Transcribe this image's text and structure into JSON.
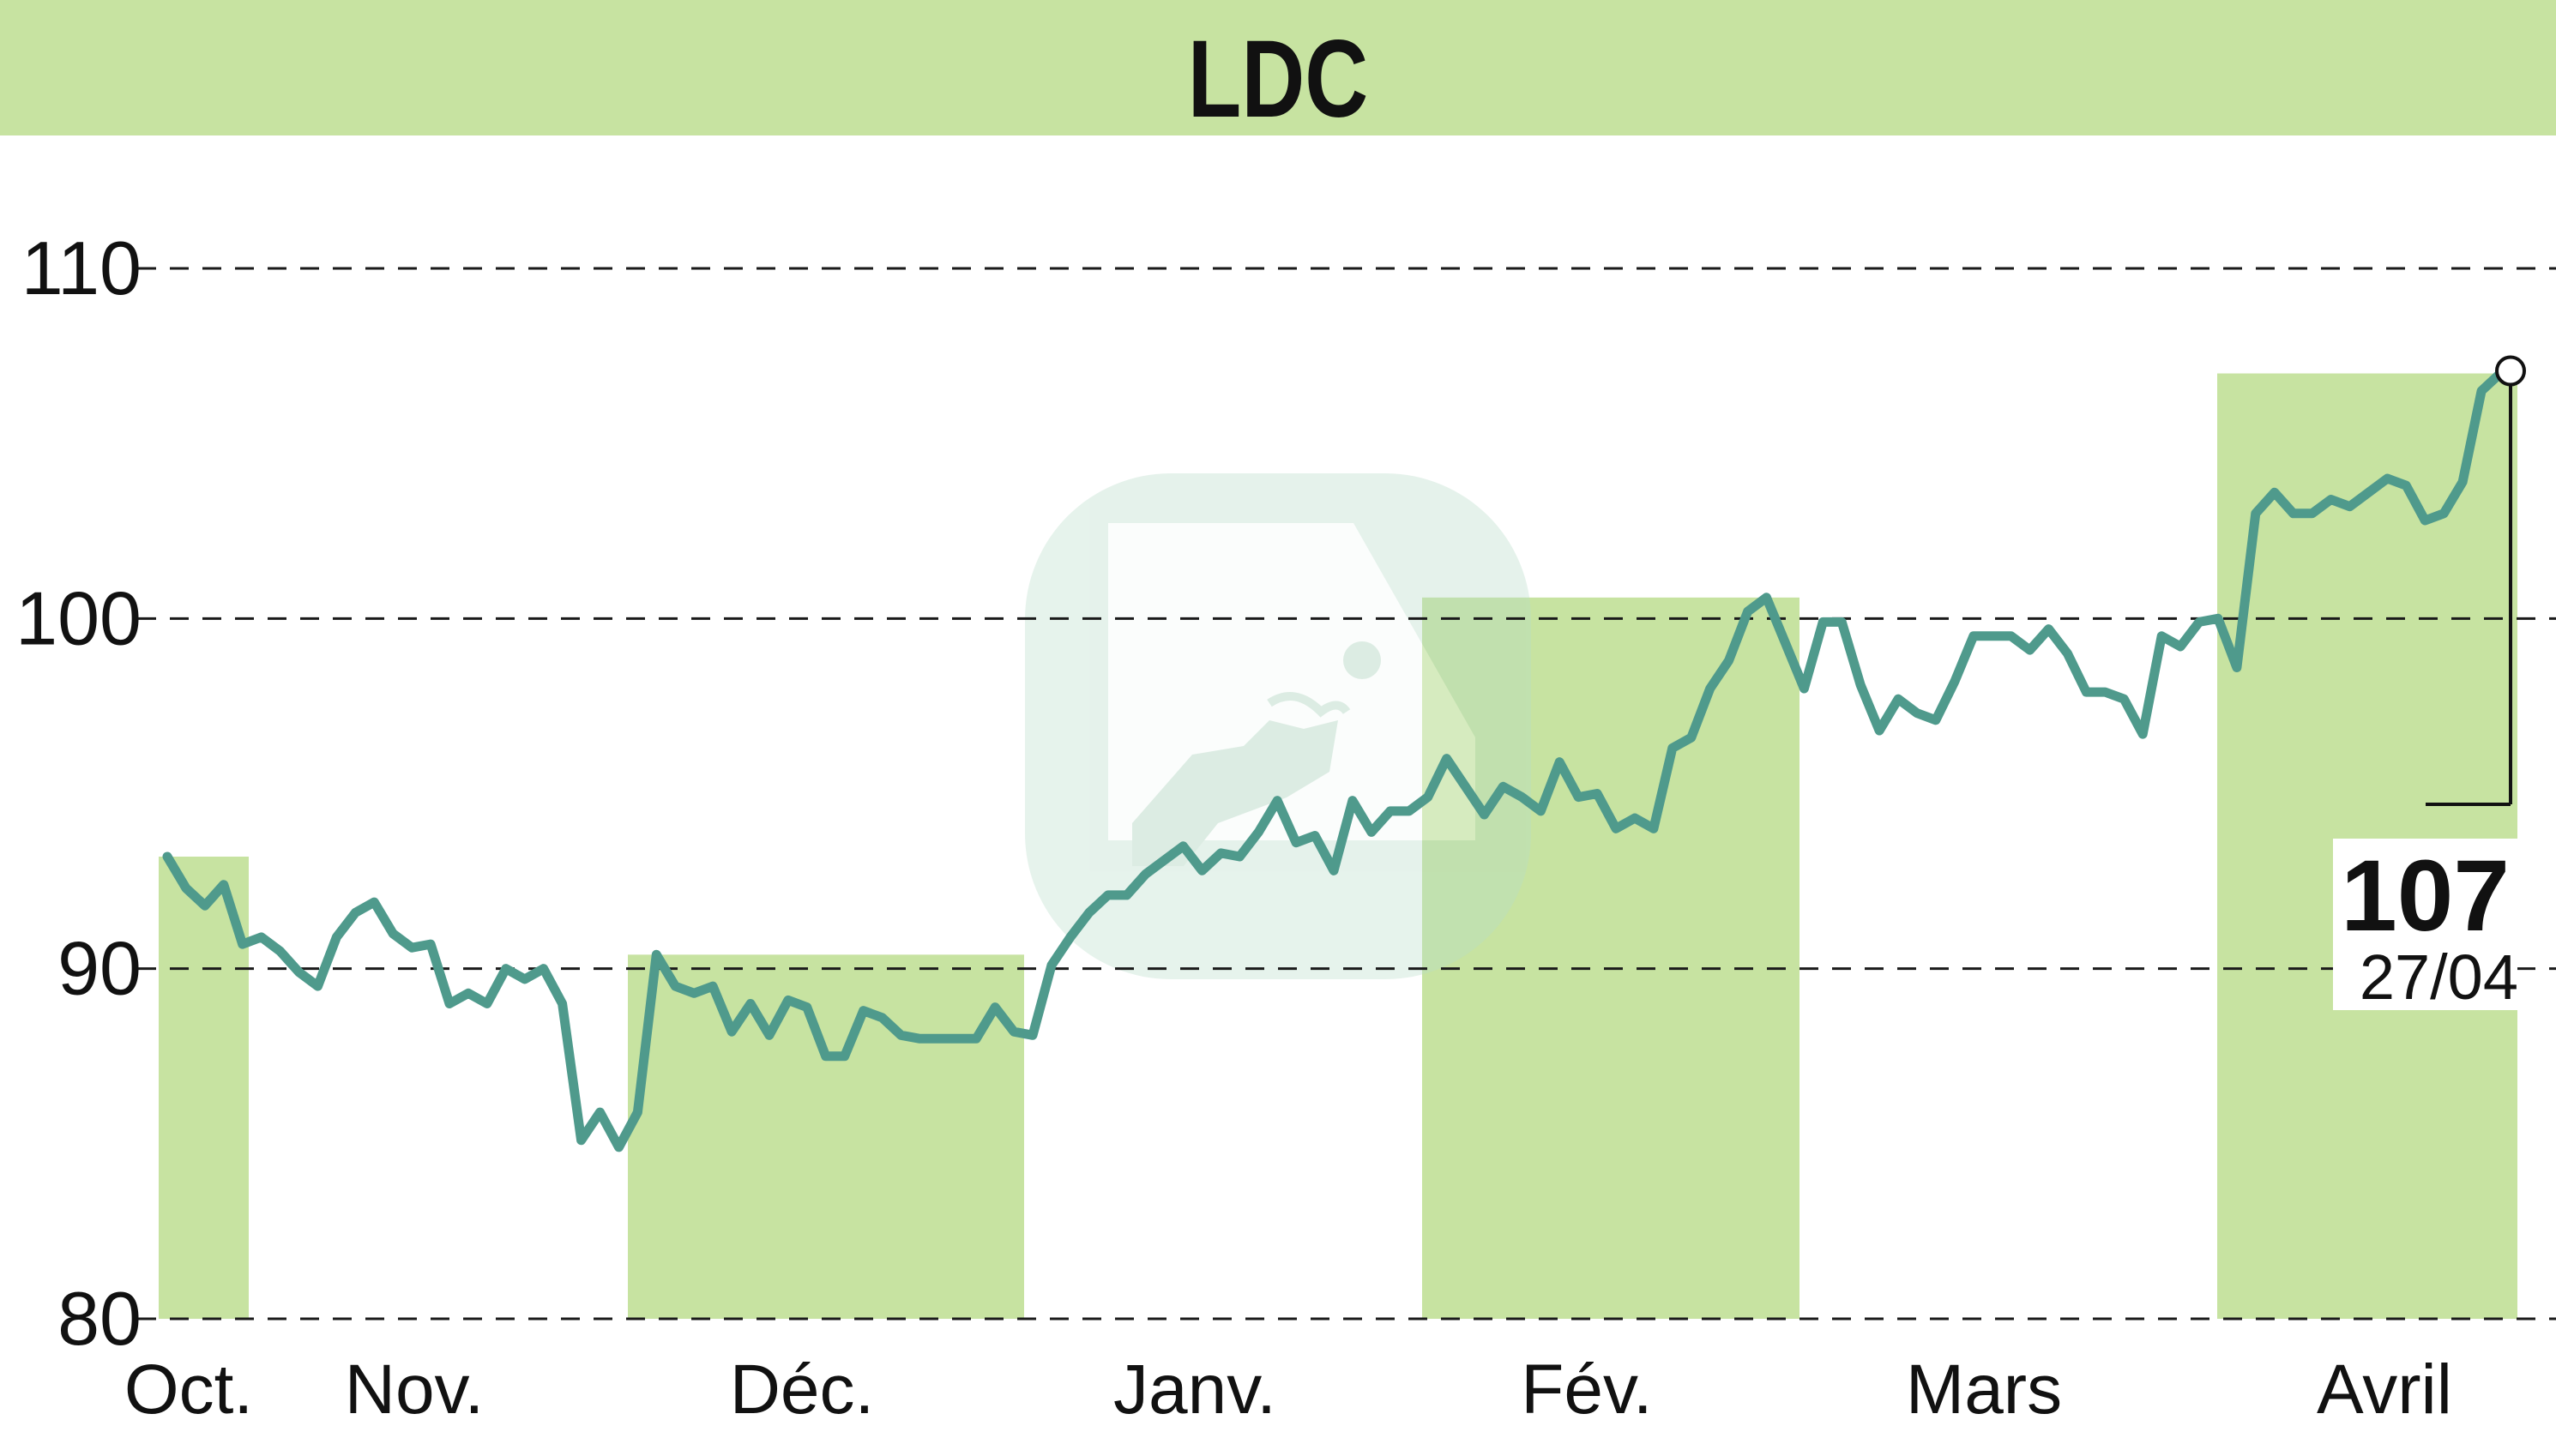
{
  "chart_data": {
    "type": "line",
    "title": "LDC",
    "ylim": [
      80,
      110
    ],
    "yticks": [
      80,
      90,
      100,
      110
    ],
    "months": [
      "Oct.",
      "Nov.",
      "Déc.",
      "Janv.",
      "Fév.",
      "Mars",
      "Avril"
    ],
    "series": [
      {
        "values": [
          93.2,
          92.3,
          91.8,
          92.4,
          90.7,
          90.9,
          90.5,
          89.9,
          89.5,
          90.9,
          91.6,
          91.9,
          91.0,
          90.6,
          90.7,
          89.0,
          89.3,
          89.0,
          90.0,
          89.7,
          90.0,
          89.0,
          85.1,
          85.9,
          84.9,
          85.9,
          90.4,
          89.5,
          89.3,
          89.5,
          88.2,
          89.0,
          88.1,
          89.1,
          88.9,
          87.5,
          87.5,
          88.8,
          88.6,
          88.1,
          88.0,
          88.0,
          88.0,
          88.0,
          88.9,
          88.2,
          88.1,
          90.1,
          90.9,
          91.6,
          92.1,
          92.1,
          92.7,
          93.1,
          93.5,
          92.8,
          93.3,
          93.2,
          93.9,
          94.8,
          93.6,
          93.8,
          92.8,
          94.8,
          93.9,
          94.5,
          94.5,
          94.9,
          96.0,
          95.2,
          94.4,
          95.2,
          94.9,
          94.5,
          95.9,
          94.9,
          95.0,
          94.0,
          94.3,
          94.0,
          96.3,
          96.6,
          98.0,
          98.8,
          100.2,
          100.6,
          99.3,
          98.0,
          99.9,
          99.9,
          98.1,
          96.8,
          97.7,
          97.3,
          97.1,
          98.2,
          99.5,
          99.5,
          99.5,
          99.1,
          99.7,
          99.0,
          97.9,
          97.9,
          97.7,
          96.7,
          99.5,
          99.2,
          99.9,
          100.0,
          98.6,
          103.0,
          103.6,
          103.0,
          103.0,
          103.4,
          103.2,
          103.6,
          104.0,
          103.8,
          102.8,
          103.0,
          103.9,
          106.5,
          107.0
        ]
      }
    ],
    "last_value": "107",
    "last_date": "27/04",
    "colors": {
      "line": "#4f9a8c",
      "band": "#c7e3a1",
      "header": "#c7e3a1",
      "grid": "#1a1a1a",
      "text": "#111111"
    },
    "watermark_icon": "bull-logo-icon"
  }
}
